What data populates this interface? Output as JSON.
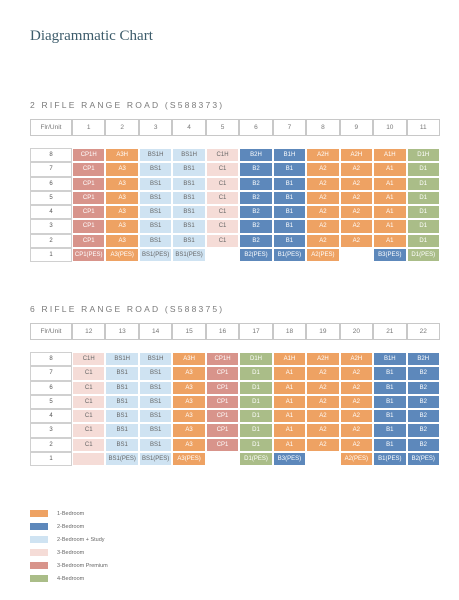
{
  "title": "Diagrammatic Chart",
  "blocks": [
    {
      "heading": "2 RIFLE RANGE ROAD (S588373)",
      "header": [
        "Flr/Unit",
        "1",
        "2",
        "3",
        "4",
        "5",
        "6",
        "7",
        "8",
        "9",
        "10",
        "11"
      ],
      "rows": [
        {
          "floor": "8",
          "units": [
            "CP1H",
            "A3H",
            "BS1H",
            "BS1H",
            "C1H",
            "B2H",
            "B1H",
            "A2H",
            "A2H",
            "A1H",
            "D1H"
          ],
          "colors": [
            "#d8948b",
            "#eea263",
            "#cfe3f2",
            "#cfe3f2",
            "#f5dcd7",
            "#5d88bb",
            "#5d88bb",
            "#eea263",
            "#eea263",
            "#eea263",
            "#aabd88"
          ]
        },
        {
          "floor": "7",
          "units": [
            "CP1",
            "A3",
            "BS1",
            "BS1",
            "C1",
            "B2",
            "B1",
            "A2",
            "A2",
            "A1",
            "D1"
          ],
          "colors": [
            "#d8948b",
            "#eea263",
            "#cfe3f2",
            "#cfe3f2",
            "#f5dcd7",
            "#5d88bb",
            "#5d88bb",
            "#eea263",
            "#eea263",
            "#eea263",
            "#aabd88"
          ]
        },
        {
          "floor": "6",
          "units": [
            "CP1",
            "A3",
            "BS1",
            "BS1",
            "C1",
            "B2",
            "B1",
            "A2",
            "A2",
            "A1",
            "D1"
          ],
          "colors": [
            "#d8948b",
            "#eea263",
            "#cfe3f2",
            "#cfe3f2",
            "#f5dcd7",
            "#5d88bb",
            "#5d88bb",
            "#eea263",
            "#eea263",
            "#eea263",
            "#aabd88"
          ]
        },
        {
          "floor": "5",
          "units": [
            "CP1",
            "A3",
            "BS1",
            "BS1",
            "C1",
            "B2",
            "B1",
            "A2",
            "A2",
            "A1",
            "D1"
          ],
          "colors": [
            "#d8948b",
            "#eea263",
            "#cfe3f2",
            "#cfe3f2",
            "#f5dcd7",
            "#5d88bb",
            "#5d88bb",
            "#eea263",
            "#eea263",
            "#eea263",
            "#aabd88"
          ]
        },
        {
          "floor": "4",
          "units": [
            "CP1",
            "A3",
            "BS1",
            "BS1",
            "C1",
            "B2",
            "B1",
            "A2",
            "A2",
            "A1",
            "D1"
          ],
          "colors": [
            "#d8948b",
            "#eea263",
            "#cfe3f2",
            "#cfe3f2",
            "#f5dcd7",
            "#5d88bb",
            "#5d88bb",
            "#eea263",
            "#eea263",
            "#eea263",
            "#aabd88"
          ]
        },
        {
          "floor": "3",
          "units": [
            "CP1",
            "A3",
            "BS1",
            "BS1",
            "C1",
            "B2",
            "B1",
            "A2",
            "A2",
            "A1",
            "D1"
          ],
          "colors": [
            "#d8948b",
            "#eea263",
            "#cfe3f2",
            "#cfe3f2",
            "#f5dcd7",
            "#5d88bb",
            "#5d88bb",
            "#eea263",
            "#eea263",
            "#eea263",
            "#aabd88"
          ]
        },
        {
          "floor": "2",
          "units": [
            "CP1",
            "A3",
            "BS1",
            "BS1",
            "C1",
            "B2",
            "B1",
            "A2",
            "A2",
            "A1",
            "D1"
          ],
          "colors": [
            "#d8948b",
            "#eea263",
            "#cfe3f2",
            "#cfe3f2",
            "#f5dcd7",
            "#5d88bb",
            "#5d88bb",
            "#eea263",
            "#eea263",
            "#eea263",
            "#aabd88"
          ]
        },
        {
          "floor": "1",
          "units": [
            "CP1(PES)",
            "A3(PES)",
            "BS1(PES)",
            "BS1(PES)",
            null,
            "B2(PES)",
            "B1(PES)",
            "A2(PES)",
            null,
            "B3(PES)",
            "D1(PES)"
          ],
          "colors": [
            "#d8948b",
            "#eea263",
            "#cfe3f2",
            "#cfe3f2",
            "#ffffff",
            "#5d88bb",
            "#5d88bb",
            "#eea263",
            "#ffffff",
            "#5d88bb",
            "#aabd88"
          ]
        }
      ]
    },
    {
      "heading": "6 RIFLE RANGE ROAD (S588375)",
      "header": [
        "Flr/Unit",
        "12",
        "13",
        "14",
        "15",
        "16",
        "17",
        "18",
        "19",
        "20",
        "21",
        "22"
      ],
      "rows": [
        {
          "floor": "8",
          "units": [
            "C1H",
            "BS1H",
            "BS1H",
            "A3H",
            "CP1H",
            "D1H",
            "A1H",
            "A2H",
            "A2H",
            "B1H",
            "B2H"
          ],
          "colors": [
            "#f5dcd7",
            "#cfe3f2",
            "#cfe3f2",
            "#eea263",
            "#d8948b",
            "#aabd88",
            "#eea263",
            "#eea263",
            "#eea263",
            "#5d88bb",
            "#5d88bb"
          ]
        },
        {
          "floor": "7",
          "units": [
            "C1",
            "BS1",
            "BS1",
            "A3",
            "CP1",
            "D1",
            "A1",
            "A2",
            "A2",
            "B1",
            "B2"
          ],
          "colors": [
            "#f5dcd7",
            "#cfe3f2",
            "#cfe3f2",
            "#eea263",
            "#d8948b",
            "#aabd88",
            "#eea263",
            "#eea263",
            "#eea263",
            "#5d88bb",
            "#5d88bb"
          ]
        },
        {
          "floor": "6",
          "units": [
            "C1",
            "BS1",
            "BS1",
            "A3",
            "CP1",
            "D1",
            "A1",
            "A2",
            "A2",
            "B1",
            "B2"
          ],
          "colors": [
            "#f5dcd7",
            "#cfe3f2",
            "#cfe3f2",
            "#eea263",
            "#d8948b",
            "#aabd88",
            "#eea263",
            "#eea263",
            "#eea263",
            "#5d88bb",
            "#5d88bb"
          ]
        },
        {
          "floor": "5",
          "units": [
            "C1",
            "BS1",
            "BS1",
            "A3",
            "CP1",
            "D1",
            "A1",
            "A2",
            "A2",
            "B1",
            "B2"
          ],
          "colors": [
            "#f5dcd7",
            "#cfe3f2",
            "#cfe3f2",
            "#eea263",
            "#d8948b",
            "#aabd88",
            "#eea263",
            "#eea263",
            "#eea263",
            "#5d88bb",
            "#5d88bb"
          ]
        },
        {
          "floor": "4",
          "units": [
            "C1",
            "BS1",
            "BS1",
            "A3",
            "CP1",
            "D1",
            "A1",
            "A2",
            "A2",
            "B1",
            "B2"
          ],
          "colors": [
            "#f5dcd7",
            "#cfe3f2",
            "#cfe3f2",
            "#eea263",
            "#d8948b",
            "#aabd88",
            "#eea263",
            "#eea263",
            "#eea263",
            "#5d88bb",
            "#5d88bb"
          ]
        },
        {
          "floor": "3",
          "units": [
            "C1",
            "BS1",
            "BS1",
            "A3",
            "CP1",
            "D1",
            "A1",
            "A2",
            "A2",
            "B1",
            "B2"
          ],
          "colors": [
            "#f5dcd7",
            "#cfe3f2",
            "#cfe3f2",
            "#eea263",
            "#d8948b",
            "#aabd88",
            "#eea263",
            "#eea263",
            "#eea263",
            "#5d88bb",
            "#5d88bb"
          ]
        },
        {
          "floor": "2",
          "units": [
            "C1",
            "BS1",
            "BS1",
            "A3",
            "CP1",
            "D1",
            "A1",
            "A2",
            "A2",
            "B1",
            "B2"
          ],
          "colors": [
            "#f5dcd7",
            "#cfe3f2",
            "#cfe3f2",
            "#eea263",
            "#d8948b",
            "#aabd88",
            "#eea263",
            "#eea263",
            "#eea263",
            "#5d88bb",
            "#5d88bb"
          ]
        },
        {
          "floor": "1",
          "units": [
            null,
            "BS1(PES)",
            "BS1(PES)",
            "A3(PES)",
            null,
            "D1(PES)",
            "B3(PES)",
            null,
            "A2(PES)",
            "B1(PES)",
            "B2(PES)"
          ],
          "colors": [
            "#f5dcd7",
            "#cfe3f2",
            "#cfe3f2",
            "#eea263",
            "#ffffff",
            "#aabd88",
            "#5d88bb",
            "#ffffff",
            "#eea263",
            "#5d88bb",
            "#5d88bb"
          ]
        }
      ]
    }
  ],
  "legend": [
    {
      "label": "1-Bedroom",
      "color": "#eea263"
    },
    {
      "label": "2-Bedroom",
      "color": "#5d88bb"
    },
    {
      "label": "2-Bedroom + Study",
      "color": "#cfe3f2"
    },
    {
      "label": "3-Bedroom",
      "color": "#f5dcd7"
    },
    {
      "label": "3-Bedroom Premium",
      "color": "#d8948b"
    },
    {
      "label": "4-Bedroom",
      "color": "#aabd88"
    }
  ]
}
